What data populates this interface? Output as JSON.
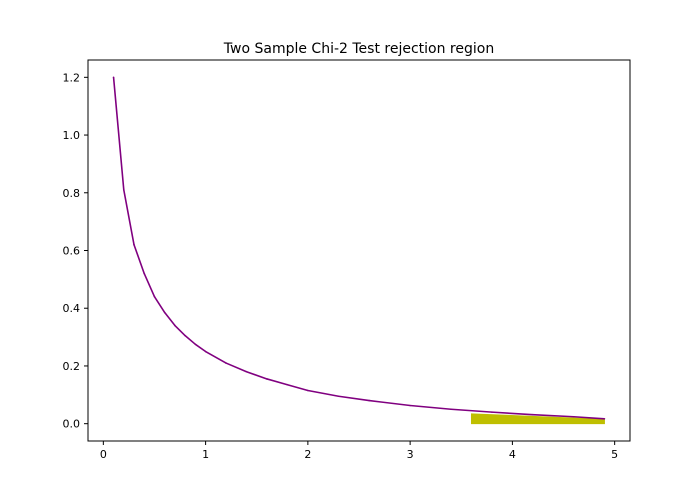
{
  "chart_data": {
    "type": "line",
    "title": "Two Sample Chi-2 Test rejection region",
    "xlabel": "",
    "ylabel": "",
    "xlim": [
      -0.15,
      5.15
    ],
    "ylim": [
      -0.06,
      1.26
    ],
    "x_ticks": [
      "0",
      "1",
      "2",
      "3",
      "4",
      "5"
    ],
    "y_ticks": [
      "0.0",
      "0.2",
      "0.4",
      "0.6",
      "0.8",
      "1.0",
      "1.2"
    ],
    "grid": false,
    "series": [
      {
        "color": "#800080",
        "x": [
          0.1,
          0.2,
          0.3,
          0.4,
          0.5,
          0.6,
          0.7,
          0.8,
          0.9,
          1.0,
          1.2,
          1.4,
          1.6,
          1.8,
          2.0,
          2.3,
          2.6,
          3.0,
          3.4,
          3.8,
          4.2,
          4.6,
          4.9
        ],
        "y": [
          1.2,
          0.81,
          0.62,
          0.52,
          0.44,
          0.385,
          0.34,
          0.305,
          0.275,
          0.25,
          0.21,
          0.18,
          0.155,
          0.135,
          0.115,
          0.095,
          0.08,
          0.063,
          0.05,
          0.04,
          0.031,
          0.024,
          0.017
        ]
      }
    ],
    "rejection_region": {
      "color": "#bfbf00",
      "x": [
        3.6,
        4.9
      ],
      "y_top": [
        0.034,
        0.015
      ]
    }
  }
}
